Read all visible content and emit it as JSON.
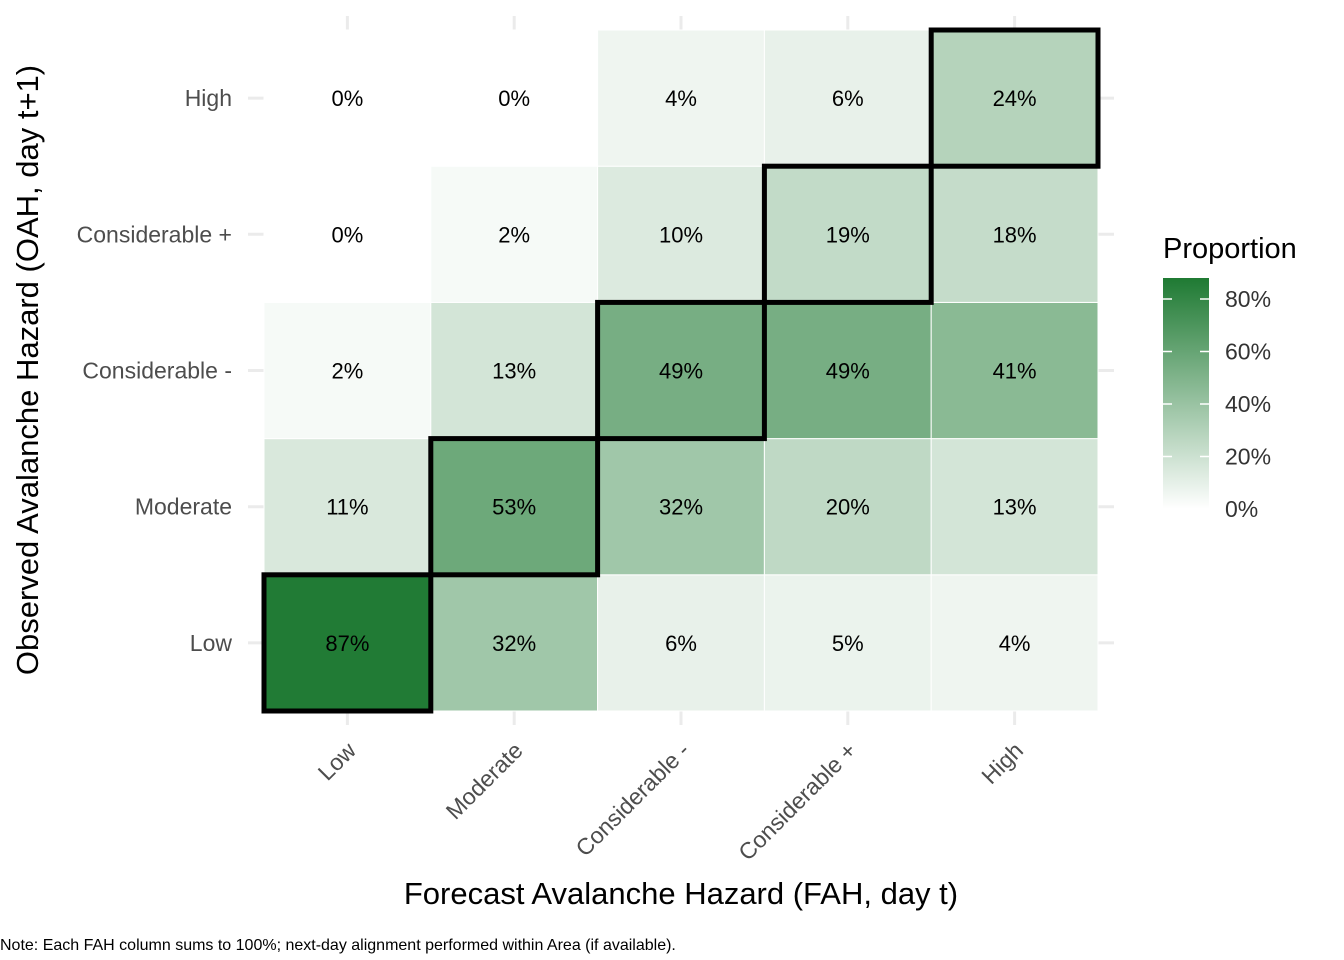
{
  "chart_data": {
    "type": "heatmap",
    "title": "",
    "xlabel": "Forecast Avalanche Hazard (FAH, day t)",
    "ylabel": "Observed Avalanche Hazard (OAH, day t+1)",
    "x_categories": [
      "Low",
      "Moderate",
      "Considerable -",
      "Considerable +",
      "High"
    ],
    "y_categories": [
      "Low",
      "Moderate",
      "Considerable -",
      "Considerable +",
      "High"
    ],
    "values": [
      [
        87,
        32,
        6,
        5,
        4
      ],
      [
        11,
        53,
        32,
        20,
        13
      ],
      [
        2,
        13,
        49,
        49,
        41
      ],
      [
        0,
        2,
        10,
        19,
        18
      ],
      [
        0,
        0,
        4,
        6,
        24
      ]
    ],
    "value_labels": [
      [
        "87%",
        "32%",
        "6%",
        "5%",
        "4%"
      ],
      [
        "11%",
        "53%",
        "32%",
        "20%",
        "13%"
      ],
      [
        "2%",
        "13%",
        "49%",
        "49%",
        "41%"
      ],
      [
        "0%",
        "2%",
        "10%",
        "19%",
        "18%"
      ],
      [
        "0%",
        "0%",
        "4%",
        "6%",
        "24%"
      ]
    ],
    "highlight": "diagonal",
    "legend": {
      "title": "Proportion",
      "position": "right",
      "ticks": [
        0,
        20,
        40,
        60,
        80
      ],
      "tick_labels": [
        "0%",
        "20%",
        "40%",
        "60%",
        "80%"
      ],
      "range": [
        0,
        88
      ],
      "color_low": "#ffffff",
      "color_high": "#1f7a33"
    },
    "grid": true
  },
  "note": "Note: Each FAH column sums to 100%; next-day alignment performed within Area (if available)."
}
